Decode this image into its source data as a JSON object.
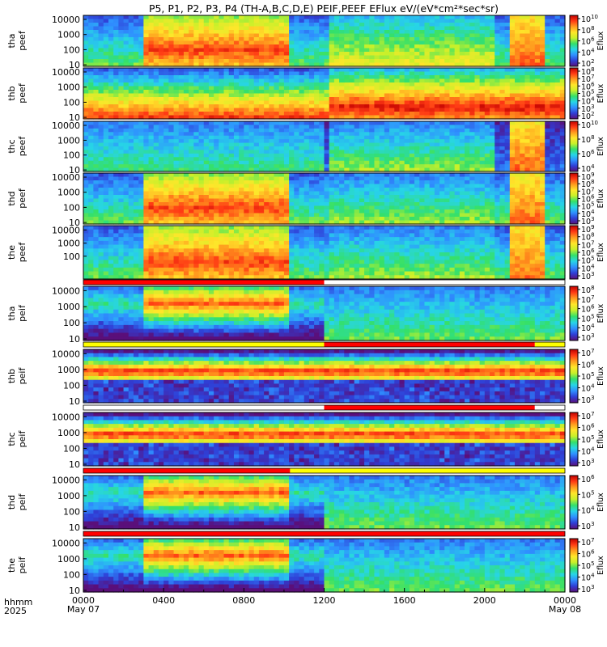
{
  "title": "P5, P1, P2, P3, P4 (TH-A,B,C,D,E) PEIF,PEEF EFlux eV/(eV*cm²*sec*sr)",
  "colorbar_label": "Eflux",
  "colors": {
    "scale": [
      "#5a0f7a",
      "#2f3fd6",
      "#2f8fff",
      "#27d5e6",
      "#34e06a",
      "#c8f02a",
      "#ffe62a",
      "#ff9b1e",
      "#ff3a14",
      "#c00000"
    ],
    "flag_red": "#ff0000",
    "flag_yellow": "#ffff00",
    "flag_black": "#000000",
    "gap": "#ffffff"
  },
  "x_axis": {
    "corner_label_1": "hhmm",
    "corner_label_2": "2025",
    "range_hours": [
      0,
      24
    ],
    "ticks": [
      {
        "hour": 0,
        "label": "0000",
        "date": "May 07"
      },
      {
        "hour": 4,
        "label": "0400",
        "date": ""
      },
      {
        "hour": 8,
        "label": "0800",
        "date": ""
      },
      {
        "hour": 12,
        "label": "1200",
        "date": ""
      },
      {
        "hour": 16,
        "label": "1600",
        "date": ""
      },
      {
        "hour": 20,
        "label": "2000",
        "date": ""
      },
      {
        "hour": 24,
        "label": "0000",
        "date": "May 08"
      }
    ]
  },
  "chart_data": [
    {
      "type": "heatmap",
      "probe_label": "tha",
      "product_label": "peef",
      "y_scale": "log",
      "ytick_labels": [
        "10000",
        "1000",
        "100",
        "10"
      ],
      "cbar_exps": [
        10,
        8,
        6,
        4,
        2
      ],
      "has_flag_bar": false
    },
    {
      "type": "heatmap",
      "probe_label": "thb",
      "product_label": "peef",
      "y_scale": "log",
      "ytick_labels": [
        "10000",
        "1000",
        "100",
        "10"
      ],
      "cbar_exps": [
        8,
        7,
        6,
        5,
        4,
        3,
        2
      ],
      "has_flag_bar": false
    },
    {
      "type": "heatmap",
      "probe_label": "thc",
      "product_label": "peef",
      "y_scale": "log",
      "ytick_labels": [
        "10000",
        "1000",
        "100",
        "10"
      ],
      "cbar_exps": [
        10,
        8,
        6,
        4
      ],
      "has_flag_bar": false
    },
    {
      "type": "heatmap",
      "probe_label": "thd",
      "product_label": "peef",
      "y_scale": "log",
      "ytick_labels": [
        "10000",
        "1000",
        "100",
        "10"
      ],
      "cbar_exps": [
        9,
        8,
        7,
        6,
        5,
        4,
        3
      ],
      "has_flag_bar": false
    },
    {
      "type": "heatmap",
      "probe_label": "the",
      "product_label": "peef",
      "y_scale": "log",
      "ytick_labels": [
        "10000",
        "1000",
        "100"
      ],
      "cbar_exps": [
        9,
        8,
        7,
        6,
        5,
        4,
        3
      ],
      "has_flag_bar": false
    },
    {
      "type": "heatmap",
      "probe_label": "tha",
      "product_label": "peif",
      "y_scale": "log",
      "ytick_labels": [
        "10000",
        "1000",
        "100",
        "10"
      ],
      "cbar_exps": [
        8,
        7,
        6,
        5,
        4,
        3
      ],
      "has_flag_bar": true
    },
    {
      "type": "heatmap",
      "probe_label": "thb",
      "product_label": "peif",
      "y_scale": "log",
      "ytick_labels": [
        "10000",
        "1000",
        "100",
        "10"
      ],
      "cbar_exps": [
        7,
        6,
        5,
        4,
        3
      ],
      "has_flag_bar": true
    },
    {
      "type": "heatmap",
      "probe_label": "thc",
      "product_label": "peif",
      "y_scale": "log",
      "ytick_labels": [
        "10000",
        "1000",
        "100",
        "10"
      ],
      "cbar_exps": [
        7,
        6,
        5,
        4,
        3
      ],
      "has_flag_bar": true
    },
    {
      "type": "heatmap",
      "probe_label": "thd",
      "product_label": "peif",
      "y_scale": "log",
      "ytick_labels": [
        "10000",
        "1000",
        "100",
        "10"
      ],
      "cbar_exps": [
        6,
        5,
        4,
        3
      ],
      "has_flag_bar": true
    },
    {
      "type": "heatmap",
      "probe_label": "the",
      "product_label": "peif",
      "y_scale": "log",
      "ytick_labels": [
        "10000",
        "1000",
        "100",
        "10"
      ],
      "cbar_exps": [
        7,
        6,
        5,
        4,
        3
      ],
      "has_flag_bar": true
    }
  ]
}
